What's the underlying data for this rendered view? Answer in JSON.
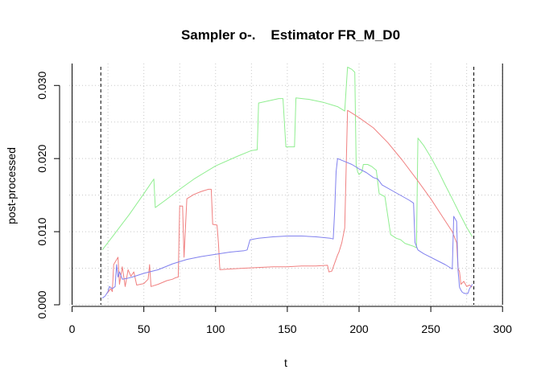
{
  "chart_data": {
    "type": "line",
    "title": "Sampler o-.    Estimator FR_M_D0",
    "xlabel": "t",
    "ylabel": "post-processed",
    "xlim": [
      -2,
      301
    ],
    "ylim": [
      0,
      0.033
    ],
    "x_ticks": [
      "0",
      "50",
      "100",
      "150",
      "200",
      "250",
      "300"
    ],
    "y_ticks": [
      "0.000",
      "0.010",
      "0.020",
      "0.030"
    ],
    "grid": true,
    "vertical_lines": {
      "solid": [
        0,
        300
      ],
      "dashed": [
        20,
        280
      ]
    },
    "series": [
      {
        "color": "#90ee90",
        "points": [
          [
            21,
            0.0075
          ],
          [
            30,
            0.0098
          ],
          [
            40,
            0.0124
          ],
          [
            50,
            0.0152
          ],
          [
            57,
            0.0172
          ],
          [
            58,
            0.0133
          ],
          [
            65,
            0.0143
          ],
          [
            75,
            0.0158
          ],
          [
            85,
            0.0172
          ],
          [
            100,
            0.019
          ],
          [
            115,
            0.0203
          ],
          [
            125,
            0.0211
          ],
          [
            129,
            0.0212
          ],
          [
            130,
            0.0276
          ],
          [
            137,
            0.0279
          ],
          [
            144,
            0.0282
          ],
          [
            147,
            0.0282
          ],
          [
            149,
            0.0216
          ],
          [
            155,
            0.0216
          ],
          [
            156,
            0.0283
          ],
          [
            165,
            0.0281
          ],
          [
            175,
            0.0277
          ],
          [
            185,
            0.0271
          ],
          [
            190,
            0.0265
          ],
          [
            192,
            0.0325
          ],
          [
            195,
            0.0322
          ],
          [
            197,
            0.0318
          ],
          [
            198,
            0.0192
          ],
          [
            199,
            0.0182
          ],
          [
            200,
            0.0178
          ],
          [
            202,
            0.0182
          ],
          [
            203,
            0.0192
          ],
          [
            206,
            0.0192
          ],
          [
            209,
            0.0189
          ],
          [
            212,
            0.0184
          ],
          [
            214,
            0.0152
          ],
          [
            218,
            0.0148
          ],
          [
            222,
            0.0096
          ],
          [
            226,
            0.0091
          ],
          [
            229,
            0.0089
          ],
          [
            232,
            0.0084
          ],
          [
            235,
            0.0082
          ],
          [
            238,
            0.008
          ],
          [
            240,
            0.0078
          ],
          [
            241,
            0.0228
          ],
          [
            245,
            0.0218
          ],
          [
            250,
            0.0202
          ],
          [
            255,
            0.0184
          ],
          [
            260,
            0.0164
          ],
          [
            265,
            0.0145
          ],
          [
            270,
            0.0125
          ],
          [
            275,
            0.0106
          ],
          [
            279,
            0.0093
          ]
        ]
      },
      {
        "color": "#f08080",
        "points": [
          [
            24,
            0.0015
          ],
          [
            27,
            0.0022
          ],
          [
            28,
            0.0018
          ],
          [
            29,
            0.0055
          ],
          [
            32,
            0.0065
          ],
          [
            33,
            0.0028
          ],
          [
            35,
            0.0052
          ],
          [
            37,
            0.0025
          ],
          [
            39,
            0.0048
          ],
          [
            41,
            0.0039
          ],
          [
            43,
            0.0045
          ],
          [
            45,
            0.0027
          ],
          [
            50,
            0.0029
          ],
          [
            53,
            0.0035
          ],
          [
            54,
            0.0055
          ],
          [
            55,
            0.0025
          ],
          [
            60,
            0.0028
          ],
          [
            66,
            0.0033
          ],
          [
            70,
            0.0035
          ],
          [
            72,
            0.0037
          ],
          [
            74,
            0.0038
          ],
          [
            75,
            0.0135
          ],
          [
            77,
            0.0135
          ],
          [
            78,
            0.0065
          ],
          [
            80,
            0.0145
          ],
          [
            85,
            0.0151
          ],
          [
            90,
            0.0155
          ],
          [
            95,
            0.0158
          ],
          [
            97,
            0.0158
          ],
          [
            98,
            0.011
          ],
          [
            101,
            0.0109
          ],
          [
            102,
            0.0085
          ],
          [
            103,
            0.0048
          ],
          [
            110,
            0.0049
          ],
          [
            120,
            0.005
          ],
          [
            130,
            0.0051
          ],
          [
            140,
            0.0052
          ],
          [
            150,
            0.0052
          ],
          [
            160,
            0.0053
          ],
          [
            170,
            0.0053
          ],
          [
            178,
            0.0054
          ],
          [
            179,
            0.0045
          ],
          [
            181,
            0.0046
          ],
          [
            185,
            0.0068
          ],
          [
            186,
            0.0072
          ],
          [
            188,
            0.0085
          ],
          [
            190,
            0.0105
          ],
          [
            192,
            0.0266
          ],
          [
            200,
            0.0256
          ],
          [
            210,
            0.0242
          ],
          [
            220,
            0.0222
          ],
          [
            230,
            0.0198
          ],
          [
            240,
            0.0172
          ],
          [
            250,
            0.0145
          ],
          [
            260,
            0.0115
          ],
          [
            265,
            0.01
          ],
          [
            268,
            0.0085
          ],
          [
            269,
            0.005
          ],
          [
            270,
            0.0045
          ],
          [
            271,
            0.0028
          ],
          [
            273,
            0.0032
          ],
          [
            275,
            0.0025
          ],
          [
            277,
            0.0027
          ],
          [
            279,
            0.0024
          ]
        ]
      },
      {
        "color": "#8080ee",
        "points": [
          [
            21,
            0.0009
          ],
          [
            23,
            0.0012
          ],
          [
            25,
            0.0018
          ],
          [
            26,
            0.0025
          ],
          [
            28,
            0.0022
          ],
          [
            30,
            0.0025
          ],
          [
            31,
            0.0055
          ],
          [
            32,
            0.0038
          ],
          [
            33,
            0.0045
          ],
          [
            35,
            0.0035
          ],
          [
            38,
            0.0036
          ],
          [
            42,
            0.0038
          ],
          [
            50,
            0.0043
          ],
          [
            60,
            0.0048
          ],
          [
            70,
            0.0056
          ],
          [
            80,
            0.0062
          ],
          [
            90,
            0.0066
          ],
          [
            100,
            0.0069
          ],
          [
            110,
            0.0072
          ],
          [
            120,
            0.0074
          ],
          [
            122,
            0.0075
          ],
          [
            124,
            0.0089
          ],
          [
            130,
            0.0091
          ],
          [
            140,
            0.0093
          ],
          [
            150,
            0.0094
          ],
          [
            160,
            0.0094
          ],
          [
            170,
            0.0093
          ],
          [
            180,
            0.0091
          ],
          [
            182,
            0.009
          ],
          [
            183,
            0.0128
          ],
          [
            184,
            0.0182
          ],
          [
            185,
            0.02
          ],
          [
            190,
            0.0196
          ],
          [
            195,
            0.0192
          ],
          [
            200,
            0.0186
          ],
          [
            205,
            0.0181
          ],
          [
            210,
            0.0174
          ],
          [
            213,
            0.0172
          ],
          [
            216,
            0.0164
          ],
          [
            225,
            0.0154
          ],
          [
            235,
            0.0143
          ],
          [
            238,
            0.0139
          ],
          [
            239,
            0.0085
          ],
          [
            241,
            0.0075
          ],
          [
            245,
            0.007
          ],
          [
            250,
            0.0065
          ],
          [
            255,
            0.006
          ],
          [
            260,
            0.0055
          ],
          [
            265,
            0.0049
          ],
          [
            266,
            0.0121
          ],
          [
            268,
            0.0114
          ],
          [
            269,
            0.0046
          ],
          [
            270,
            0.0024
          ],
          [
            271,
            0.002
          ],
          [
            272,
            0.0017
          ],
          [
            273,
            0.0016
          ],
          [
            275,
            0.0015
          ],
          [
            276,
            0.0016
          ],
          [
            277,
            0.0022
          ],
          [
            279,
            0.0028
          ]
        ]
      }
    ]
  }
}
